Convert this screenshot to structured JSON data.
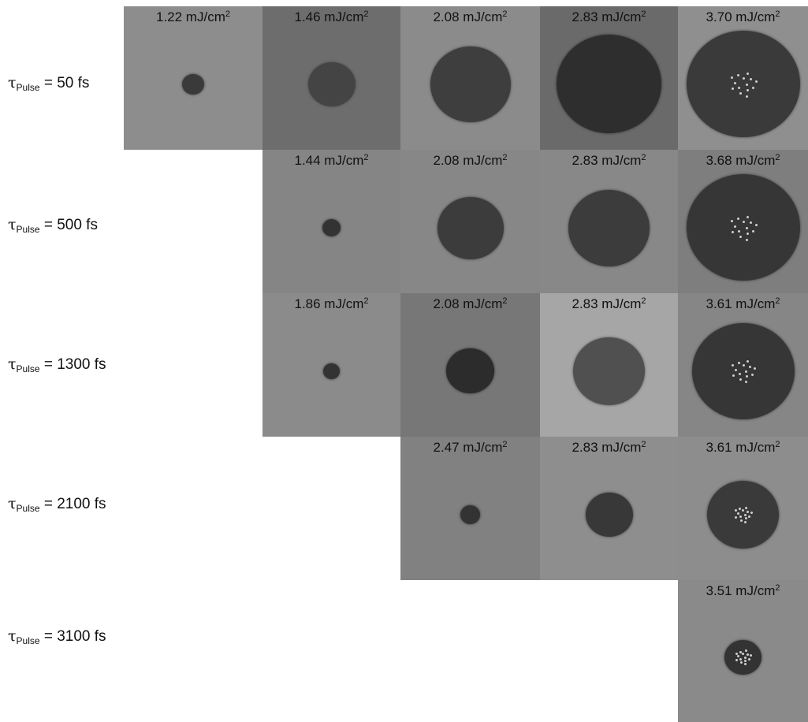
{
  "rows": [
    {
      "label_symbol": "τ",
      "label_sub": "Pulse",
      "label_value": " = 50 fs",
      "panels": [
        {
          "fluence": "1.22 mJ/cm",
          "exp": "2",
          "bg": "#8d8d8d",
          "spot": "#3a3a3a",
          "ablated": 0.16,
          "damage": false
        },
        {
          "fluence": "1.46 mJ/cm",
          "exp": "2",
          "bg": "#6d6d6d",
          "spot": "#444444",
          "ablated": 0.34,
          "damage": false
        },
        {
          "fluence": "2.08 mJ/cm",
          "exp": "2",
          "bg": "#8b8b8b",
          "spot": "#3e3e3e",
          "ablated": 0.58,
          "damage": false
        },
        {
          "fluence": "2.83 mJ/cm",
          "exp": "2",
          "bg": "#6a6a6a",
          "spot": "#2e2e2e",
          "ablated": 0.76,
          "damage": false
        },
        {
          "fluence": "3.70 mJ/cm",
          "exp": "2",
          "bg": "#8f8f8f",
          "spot": "#3a3a3a",
          "ablated": 0.82,
          "damage": true
        }
      ]
    },
    {
      "label_symbol": "τ",
      "label_sub": "Pulse",
      "label_value": " = 500 fs",
      "panels": [
        {
          "fluence": "1.44 mJ/cm",
          "exp": "2",
          "bg": "#858585",
          "spot": "#333333",
          "ablated": 0.13,
          "damage": false
        },
        {
          "fluence": "2.08 mJ/cm",
          "exp": "2",
          "bg": "#878787",
          "spot": "#3c3c3c",
          "ablated": 0.48,
          "damage": false
        },
        {
          "fluence": "2.83 mJ/cm",
          "exp": "2",
          "bg": "#888888",
          "spot": "#3c3c3c",
          "ablated": 0.59,
          "damage": false
        },
        {
          "fluence": "3.68 mJ/cm",
          "exp": "2",
          "bg": "#7e7e7e",
          "spot": "#363636",
          "ablated": 0.82,
          "damage": true
        }
      ]
    },
    {
      "label_symbol": "τ",
      "label_sub": "Pulse",
      "label_value": " = 1300 fs",
      "panels": [
        {
          "fluence": "1.86 mJ/cm",
          "exp": "2",
          "bg": "#8b8b8b",
          "spot": "#333333",
          "ablated": 0.12,
          "damage": false
        },
        {
          "fluence": "2.08 mJ/cm",
          "exp": "2",
          "bg": "#777777",
          "spot": "#2c2c2c",
          "ablated": 0.35,
          "damage": false
        },
        {
          "fluence": "2.83 mJ/cm",
          "exp": "2",
          "bg": "#a6a6a6",
          "spot": "#505050",
          "ablated": 0.52,
          "damage": false
        },
        {
          "fluence": "3.61 mJ/cm",
          "exp": "2",
          "bg": "#868686",
          "spot": "#363636",
          "ablated": 0.74,
          "damage": true
        }
      ]
    },
    {
      "label_symbol": "τ",
      "label_sub": "Pulse",
      "label_value": " = 2100 fs",
      "panels": [
        {
          "fluence": "2.47 mJ/cm",
          "exp": "2",
          "bg": "#818181",
          "spot": "#333333",
          "ablated": 0.14,
          "damage": false
        },
        {
          "fluence": "2.83 mJ/cm",
          "exp": "2",
          "bg": "#8e8e8e",
          "spot": "#383838",
          "ablated": 0.34,
          "damage": false
        },
        {
          "fluence": "3.61 mJ/cm",
          "exp": "2",
          "bg": "#8d8d8d",
          "spot": "#3a3a3a",
          "ablated": 0.52,
          "damage": true
        }
      ]
    },
    {
      "label_symbol": "τ",
      "label_sub": "Pulse",
      "label_value": " = 3100 fs",
      "panels": [
        {
          "fluence": "3.51 mJ/cm",
          "exp": "2",
          "bg": "#8a8a8a",
          "spot": "#333333",
          "ablated": 0.27,
          "damage": true
        }
      ]
    }
  ]
}
